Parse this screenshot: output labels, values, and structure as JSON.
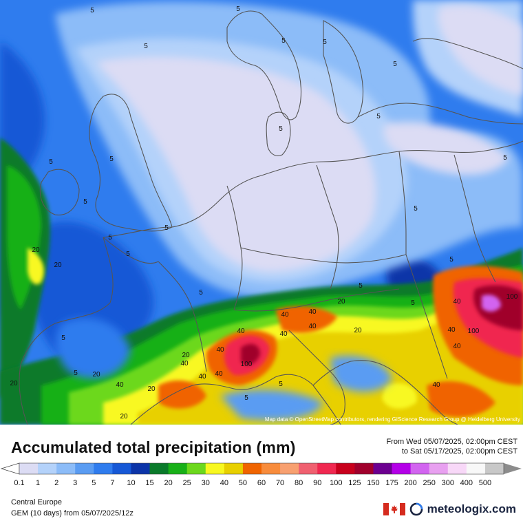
{
  "map": {
    "attribution": "Map data © OpenStreetMap contributors, rendering GIScience Research Group @ Heidelberg University",
    "contour_labels": [
      "5",
      "5",
      "5",
      "5",
      "5",
      "5",
      "5",
      "5",
      "5",
      "5",
      "5",
      "5",
      "5",
      "5",
      "5",
      "5",
      "5",
      "5",
      "5",
      "5",
      "5",
      "5",
      "5",
      "5",
      "20",
      "20",
      "20",
      "20",
      "20",
      "20",
      "20",
      "20",
      "20",
      "40",
      "40",
      "40",
      "40",
      "40",
      "40",
      "40",
      "40",
      "40",
      "40",
      "40",
      "40",
      "40",
      "40",
      "100",
      "100",
      "100"
    ]
  },
  "legend": {
    "title": "Accumulated total precipitation (mm)",
    "period_from": "From Wed 05/07/2025, 02:00pm CEST",
    "period_to": "to Sat 05/17/2025, 02:00pm CEST",
    "ticks": [
      "0.1",
      "1",
      "2",
      "3",
      "5",
      "7",
      "10",
      "15",
      "20",
      "25",
      "30",
      "40",
      "50",
      "60",
      "70",
      "80",
      "90",
      "100",
      "125",
      "150",
      "175",
      "200",
      "250",
      "300",
      "400",
      "500"
    ],
    "colors": [
      "#dcdcf4",
      "#b4d2fa",
      "#8cbcf8",
      "#5a9cf2",
      "#2f7cee",
      "#1658d6",
      "#0c34a8",
      "#0a7a2a",
      "#18b018",
      "#6cd81c",
      "#f8f820",
      "#e8d000",
      "#f06400",
      "#f88c3c",
      "#f8a070",
      "#f06070",
      "#f02850",
      "#c8001c",
      "#a0002c",
      "#6c0090",
      "#b400e8",
      "#d264f0",
      "#e8a0f0",
      "#f8d8f8",
      "#f8f8f8",
      "#c8c8c8"
    ],
    "over_color": "#8c8c8c",
    "under_color": "#ffffff"
  },
  "footer": {
    "region": "Central Europe",
    "model": "GEM (10 days) from 05/07/2025/12z",
    "brand": "meteologix.com"
  },
  "icons": {
    "flag": "canada-flag-icon",
    "logo": "meteologix-logo-icon"
  }
}
